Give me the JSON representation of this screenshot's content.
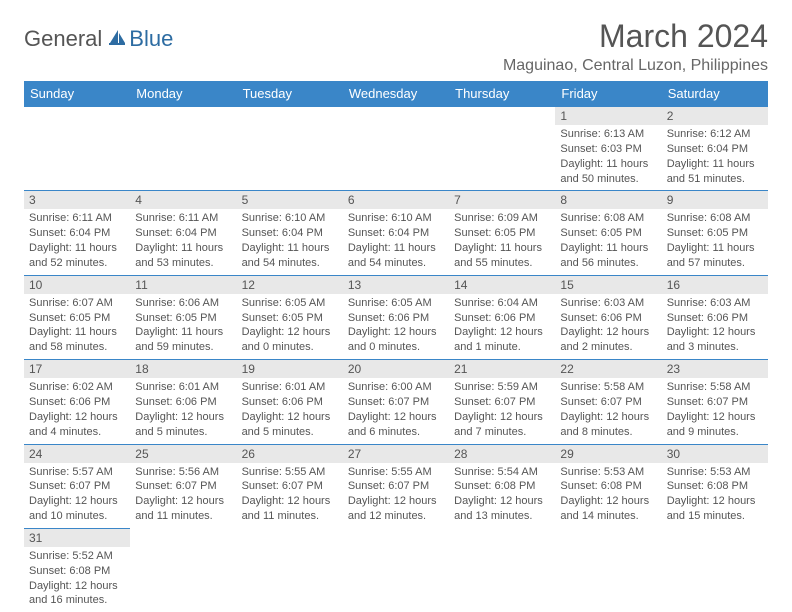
{
  "logo": {
    "general": "General",
    "blue": "Blue"
  },
  "title": "March 2024",
  "location": "Maguinao, Central Luzon, Philippines",
  "colors": {
    "header_bg": "#3a86c8",
    "header_text": "#ffffff",
    "daynum_bg": "#e8e8e8",
    "border": "#3a86c8",
    "text": "#555555"
  },
  "weekdays": [
    "Sunday",
    "Monday",
    "Tuesday",
    "Wednesday",
    "Thursday",
    "Friday",
    "Saturday"
  ],
  "weeks": [
    [
      null,
      null,
      null,
      null,
      null,
      {
        "n": "1",
        "sr": "Sunrise: 6:13 AM",
        "ss": "Sunset: 6:03 PM",
        "dl": "Daylight: 11 hours and 50 minutes."
      },
      {
        "n": "2",
        "sr": "Sunrise: 6:12 AM",
        "ss": "Sunset: 6:04 PM",
        "dl": "Daylight: 11 hours and 51 minutes."
      }
    ],
    [
      {
        "n": "3",
        "sr": "Sunrise: 6:11 AM",
        "ss": "Sunset: 6:04 PM",
        "dl": "Daylight: 11 hours and 52 minutes."
      },
      {
        "n": "4",
        "sr": "Sunrise: 6:11 AM",
        "ss": "Sunset: 6:04 PM",
        "dl": "Daylight: 11 hours and 53 minutes."
      },
      {
        "n": "5",
        "sr": "Sunrise: 6:10 AM",
        "ss": "Sunset: 6:04 PM",
        "dl": "Daylight: 11 hours and 54 minutes."
      },
      {
        "n": "6",
        "sr": "Sunrise: 6:10 AM",
        "ss": "Sunset: 6:04 PM",
        "dl": "Daylight: 11 hours and 54 minutes."
      },
      {
        "n": "7",
        "sr": "Sunrise: 6:09 AM",
        "ss": "Sunset: 6:05 PM",
        "dl": "Daylight: 11 hours and 55 minutes."
      },
      {
        "n": "8",
        "sr": "Sunrise: 6:08 AM",
        "ss": "Sunset: 6:05 PM",
        "dl": "Daylight: 11 hours and 56 minutes."
      },
      {
        "n": "9",
        "sr": "Sunrise: 6:08 AM",
        "ss": "Sunset: 6:05 PM",
        "dl": "Daylight: 11 hours and 57 minutes."
      }
    ],
    [
      {
        "n": "10",
        "sr": "Sunrise: 6:07 AM",
        "ss": "Sunset: 6:05 PM",
        "dl": "Daylight: 11 hours and 58 minutes."
      },
      {
        "n": "11",
        "sr": "Sunrise: 6:06 AM",
        "ss": "Sunset: 6:05 PM",
        "dl": "Daylight: 11 hours and 59 minutes."
      },
      {
        "n": "12",
        "sr": "Sunrise: 6:05 AM",
        "ss": "Sunset: 6:05 PM",
        "dl": "Daylight: 12 hours and 0 minutes."
      },
      {
        "n": "13",
        "sr": "Sunrise: 6:05 AM",
        "ss": "Sunset: 6:06 PM",
        "dl": "Daylight: 12 hours and 0 minutes."
      },
      {
        "n": "14",
        "sr": "Sunrise: 6:04 AM",
        "ss": "Sunset: 6:06 PM",
        "dl": "Daylight: 12 hours and 1 minute."
      },
      {
        "n": "15",
        "sr": "Sunrise: 6:03 AM",
        "ss": "Sunset: 6:06 PM",
        "dl": "Daylight: 12 hours and 2 minutes."
      },
      {
        "n": "16",
        "sr": "Sunrise: 6:03 AM",
        "ss": "Sunset: 6:06 PM",
        "dl": "Daylight: 12 hours and 3 minutes."
      }
    ],
    [
      {
        "n": "17",
        "sr": "Sunrise: 6:02 AM",
        "ss": "Sunset: 6:06 PM",
        "dl": "Daylight: 12 hours and 4 minutes."
      },
      {
        "n": "18",
        "sr": "Sunrise: 6:01 AM",
        "ss": "Sunset: 6:06 PM",
        "dl": "Daylight: 12 hours and 5 minutes."
      },
      {
        "n": "19",
        "sr": "Sunrise: 6:01 AM",
        "ss": "Sunset: 6:06 PM",
        "dl": "Daylight: 12 hours and 5 minutes."
      },
      {
        "n": "20",
        "sr": "Sunrise: 6:00 AM",
        "ss": "Sunset: 6:07 PM",
        "dl": "Daylight: 12 hours and 6 minutes."
      },
      {
        "n": "21",
        "sr": "Sunrise: 5:59 AM",
        "ss": "Sunset: 6:07 PM",
        "dl": "Daylight: 12 hours and 7 minutes."
      },
      {
        "n": "22",
        "sr": "Sunrise: 5:58 AM",
        "ss": "Sunset: 6:07 PM",
        "dl": "Daylight: 12 hours and 8 minutes."
      },
      {
        "n": "23",
        "sr": "Sunrise: 5:58 AM",
        "ss": "Sunset: 6:07 PM",
        "dl": "Daylight: 12 hours and 9 minutes."
      }
    ],
    [
      {
        "n": "24",
        "sr": "Sunrise: 5:57 AM",
        "ss": "Sunset: 6:07 PM",
        "dl": "Daylight: 12 hours and 10 minutes."
      },
      {
        "n": "25",
        "sr": "Sunrise: 5:56 AM",
        "ss": "Sunset: 6:07 PM",
        "dl": "Daylight: 12 hours and 11 minutes."
      },
      {
        "n": "26",
        "sr": "Sunrise: 5:55 AM",
        "ss": "Sunset: 6:07 PM",
        "dl": "Daylight: 12 hours and 11 minutes."
      },
      {
        "n": "27",
        "sr": "Sunrise: 5:55 AM",
        "ss": "Sunset: 6:07 PM",
        "dl": "Daylight: 12 hours and 12 minutes."
      },
      {
        "n": "28",
        "sr": "Sunrise: 5:54 AM",
        "ss": "Sunset: 6:08 PM",
        "dl": "Daylight: 12 hours and 13 minutes."
      },
      {
        "n": "29",
        "sr": "Sunrise: 5:53 AM",
        "ss": "Sunset: 6:08 PM",
        "dl": "Daylight: 12 hours and 14 minutes."
      },
      {
        "n": "30",
        "sr": "Sunrise: 5:53 AM",
        "ss": "Sunset: 6:08 PM",
        "dl": "Daylight: 12 hours and 15 minutes."
      }
    ],
    [
      {
        "n": "31",
        "sr": "Sunrise: 5:52 AM",
        "ss": "Sunset: 6:08 PM",
        "dl": "Daylight: 12 hours and 16 minutes."
      },
      null,
      null,
      null,
      null,
      null,
      null
    ]
  ]
}
